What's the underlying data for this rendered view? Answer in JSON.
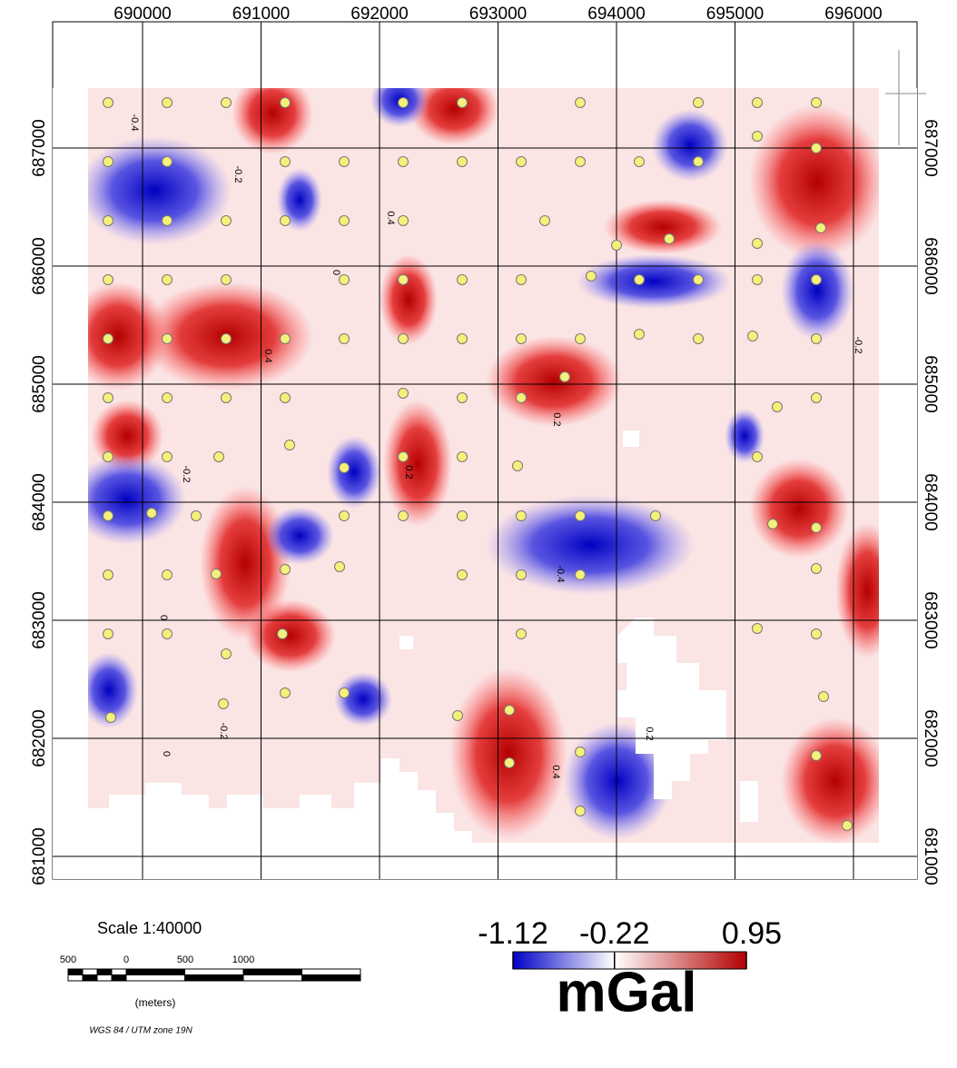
{
  "map": {
    "eastings": [
      690000,
      691000,
      692000,
      693000,
      694000,
      695000,
      696000
    ],
    "northings": [
      687000,
      686000,
      685000,
      684000,
      683000,
      682000,
      681000
    ],
    "contour_labels": [
      "-0.4",
      "-0.2",
      "0.4",
      "0",
      "-0.2",
      "0.2",
      "0.2",
      "-0.4",
      "0.4",
      "0.2",
      "0",
      "-0.2",
      "0.4",
      "-0.2",
      "0"
    ],
    "scale": {
      "title": "Scale 1:40000",
      "bar_labels": [
        500,
        0,
        500,
        1000
      ],
      "unit": "(meters)",
      "projection": "WGS 84 / UTM zone 19N"
    },
    "colorbar": {
      "min": -1.12,
      "mid": -0.22,
      "max": 0.95,
      "unit": "mGal",
      "colors": [
        "#0000c8",
        "#ffffff",
        "#b40000"
      ]
    }
  }
}
